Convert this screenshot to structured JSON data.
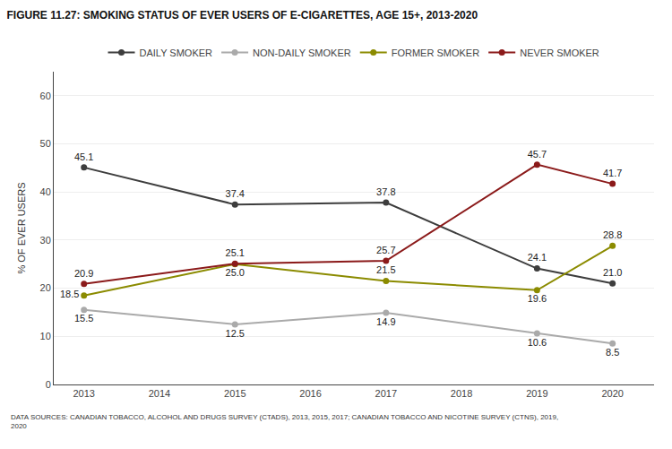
{
  "chart_data": {
    "type": "line",
    "title": "FIGURE 11.27: SMOKING STATUS OF EVER USERS OF E-CIGARETTES, AGE 15+, 2013-2020",
    "ylabel": "% OF EVER USERS",
    "annotations": [
      "DATA SOURCES: CANADIAN TOBACCO, ALCOHOL AND DRUGS SURVEY (CTADS), 2013, 2015, 2017; CANADIAN TOBACCO AND NICOTINE SURVEY (CTNS), 2019,\n2020"
    ],
    "x": [
      2013,
      2015,
      2017,
      2019,
      2020
    ],
    "series": [
      {
        "name": "DAILY SMOKER",
        "color": "#3d3d3d",
        "values": [
          45.1,
          37.4,
          37.8,
          24.1,
          21.0
        ],
        "value_labels": [
          "45.1",
          "37.4",
          "37.8",
          "24.1",
          "21.0"
        ]
      },
      {
        "name": "NON-DAILY SMOKER",
        "color": "#aaaaaa",
        "values": [
          15.5,
          12.5,
          14.9,
          10.6,
          8.5
        ]
      },
      {
        "name": "FORMER SMOKER",
        "color": "#8b8b00",
        "values": [
          18.5,
          25.0,
          21.5,
          19.6,
          28.8
        ],
        "value_labels": [
          "18.5",
          "25.0",
          "21.5",
          "19.6",
          "28.8"
        ]
      },
      {
        "name": "NEVER SMOKER",
        "color": "#8b1a1a",
        "values": [
          20.9,
          25.1,
          25.7,
          45.7,
          41.7
        ]
      }
    ],
    "xlim": [
      2012.6,
      2020.55
    ],
    "xticks": [
      2013,
      2014,
      2015,
      2016,
      2017,
      2018,
      2019,
      2020
    ],
    "ylim": [
      0,
      65
    ],
    "yticks": [
      0,
      10,
      20,
      30,
      40,
      50,
      60
    ],
    "grid": true,
    "legend": "top",
    "data_labels": true,
    "marker": "circle"
  }
}
